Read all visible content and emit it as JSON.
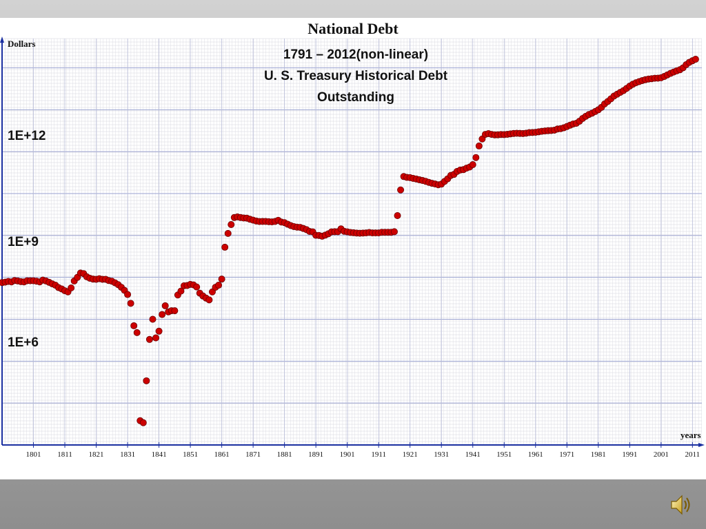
{
  "chart_data": {
    "type": "scatter",
    "title": "National Debt",
    "subtitle_lines": [
      "1791 – 2012(non-linear)",
      "U. S. Treasury Historical Debt",
      "Outstanding"
    ],
    "ylabel": "Dollars",
    "xlabel": "years",
    "y_scale": "log",
    "y_tick_labels": [
      "1E+12",
      "1E+9",
      "1E+6"
    ],
    "y_tick_values": [
      1000000000000,
      1000000000,
      1000000
    ],
    "x_tick_labels": [
      "1801",
      "1811",
      "1821",
      "1831",
      "1841",
      "1851",
      "1861",
      "1871",
      "1881",
      "1891",
      "1901",
      "1911",
      "1921",
      "1931",
      "1941",
      "1951",
      "1961",
      "1971",
      "1981",
      "1991",
      "2001",
      "2011"
    ],
    "xlim": [
      1791,
      2014
    ],
    "ylim": [
      10000,
      50000000000000
    ],
    "grid": true,
    "marker_color": "#cc0000",
    "series": [
      {
        "points": [
          [
            1791,
            75000000
          ],
          [
            1792,
            77000000
          ],
          [
            1793,
            80000000
          ],
          [
            1794,
            78000000
          ],
          [
            1795,
            84000000
          ],
          [
            1796,
            82000000
          ],
          [
            1797,
            79000000
          ],
          [
            1798,
            78000000
          ],
          [
            1799,
            83000000
          ],
          [
            1800,
            83000000
          ],
          [
            1801,
            83000000
          ],
          [
            1802,
            81000000
          ],
          [
            1803,
            78000000
          ],
          [
            1804,
            86000000
          ],
          [
            1805,
            82000000
          ],
          [
            1806,
            76000000
          ],
          [
            1807,
            70000000
          ],
          [
            1808,
            65000000
          ],
          [
            1809,
            57000000
          ],
          [
            1810,
            53000000
          ],
          [
            1811,
            48000000
          ],
          [
            1812,
            45000000
          ],
          [
            1813,
            56000000
          ],
          [
            1814,
            82000000
          ],
          [
            1815,
            100000000
          ],
          [
            1816,
            127000000
          ],
          [
            1817,
            123000000
          ],
          [
            1818,
            103000000
          ],
          [
            1819,
            95000000
          ],
          [
            1820,
            91000000
          ],
          [
            1821,
            90000000
          ],
          [
            1822,
            93000000
          ],
          [
            1823,
            90000000
          ],
          [
            1824,
            90000000
          ],
          [
            1825,
            84000000
          ],
          [
            1826,
            81000000
          ],
          [
            1827,
            74000000
          ],
          [
            1828,
            67000000
          ],
          [
            1829,
            58000000
          ],
          [
            1830,
            49000000
          ],
          [
            1831,
            39000000
          ],
          [
            1832,
            24000000
          ],
          [
            1833,
            7000000
          ],
          [
            1834,
            4800000
          ],
          [
            1835,
            38000
          ],
          [
            1836,
            34000
          ],
          [
            1837,
            340000
          ],
          [
            1838,
            3300000
          ],
          [
            1839,
            10000000
          ],
          [
            1840,
            3600000
          ],
          [
            1841,
            5200000
          ],
          [
            1842,
            13000000
          ],
          [
            1843,
            21000000
          ],
          [
            1844,
            15000000
          ],
          [
            1845,
            16000000
          ],
          [
            1846,
            16000000
          ],
          [
            1847,
            38000000
          ],
          [
            1848,
            47000000
          ],
          [
            1849,
            63000000
          ],
          [
            1850,
            64000000
          ],
          [
            1851,
            68000000
          ],
          [
            1852,
            66000000
          ],
          [
            1853,
            59000000
          ],
          [
            1854,
            42000000
          ],
          [
            1855,
            36000000
          ],
          [
            1856,
            32000000
          ],
          [
            1857,
            29000000
          ],
          [
            1858,
            45000000
          ],
          [
            1859,
            58000000
          ],
          [
            1860,
            65000000
          ],
          [
            1861,
            91000000
          ],
          [
            1862,
            524000000
          ],
          [
            1863,
            1120000000
          ],
          [
            1864,
            1820000000
          ],
          [
            1865,
            2680000000
          ],
          [
            1866,
            2770000000
          ],
          [
            1867,
            2680000000
          ],
          [
            1868,
            2610000000
          ],
          [
            1869,
            2590000000
          ],
          [
            1870,
            2440000000
          ],
          [
            1871,
            2320000000
          ],
          [
            1872,
            2210000000
          ],
          [
            1873,
            2150000000
          ],
          [
            1874,
            2160000000
          ],
          [
            1875,
            2160000000
          ],
          [
            1876,
            2130000000
          ],
          [
            1877,
            2110000000
          ],
          [
            1878,
            2160000000
          ],
          [
            1879,
            2300000000
          ],
          [
            1880,
            2090000000
          ],
          [
            1881,
            2020000000
          ],
          [
            1882,
            1860000000
          ],
          [
            1883,
            1720000000
          ],
          [
            1884,
            1630000000
          ],
          [
            1885,
            1580000000
          ],
          [
            1886,
            1560000000
          ],
          [
            1887,
            1470000000
          ],
          [
            1888,
            1380000000
          ],
          [
            1889,
            1250000000
          ],
          [
            1890,
            1220000000
          ],
          [
            1891,
            1010000000
          ],
          [
            1892,
            1000000000
          ],
          [
            1893,
            960000000
          ],
          [
            1894,
            1020000000
          ],
          [
            1895,
            1100000000
          ],
          [
            1896,
            1220000000
          ],
          [
            1897,
            1230000000
          ],
          [
            1898,
            1230000000
          ],
          [
            1899,
            1440000000
          ],
          [
            1900,
            1260000000
          ],
          [
            1901,
            1220000000
          ],
          [
            1902,
            1180000000
          ],
          [
            1903,
            1160000000
          ],
          [
            1904,
            1140000000
          ],
          [
            1905,
            1130000000
          ],
          [
            1906,
            1140000000
          ],
          [
            1907,
            1150000000
          ],
          [
            1908,
            1180000000
          ],
          [
            1909,
            1150000000
          ],
          [
            1910,
            1150000000
          ],
          [
            1911,
            1150000000
          ],
          [
            1912,
            1190000000
          ],
          [
            1913,
            1190000000
          ],
          [
            1914,
            1190000000
          ],
          [
            1915,
            1190000000
          ],
          [
            1916,
            1230000000
          ],
          [
            1917,
            2980000000
          ],
          [
            1918,
            12200000000
          ],
          [
            1919,
            25500000000
          ],
          [
            1920,
            24300000000
          ],
          [
            1921,
            24000000000
          ],
          [
            1922,
            23000000000
          ],
          [
            1923,
            22300000000
          ],
          [
            1924,
            21300000000
          ],
          [
            1925,
            20500000000
          ],
          [
            1926,
            19600000000
          ],
          [
            1927,
            18500000000
          ],
          [
            1928,
            17600000000
          ],
          [
            1929,
            16900000000
          ],
          [
            1930,
            16200000000
          ],
          [
            1931,
            16800000000
          ],
          [
            1932,
            19500000000
          ],
          [
            1933,
            22500000000
          ],
          [
            1934,
            27100000000
          ],
          [
            1935,
            28700000000
          ],
          [
            1936,
            33800000000
          ],
          [
            1937,
            36400000000
          ],
          [
            1938,
            37200000000
          ],
          [
            1939,
            40400000000
          ],
          [
            1940,
            43000000000
          ],
          [
            1941,
            49000000000
          ],
          [
            1942,
            72400000000
          ],
          [
            1943,
            136700000000
          ],
          [
            1944,
            201000000000
          ],
          [
            1945,
            258700000000
          ],
          [
            1946,
            269400000000
          ],
          [
            1947,
            258300000000
          ],
          [
            1948,
            252300000000
          ],
          [
            1949,
            252800000000
          ],
          [
            1950,
            257400000000
          ],
          [
            1951,
            255200000000
          ],
          [
            1952,
            259100000000
          ],
          [
            1953,
            266100000000
          ],
          [
            1954,
            271300000000
          ],
          [
            1955,
            274400000000
          ],
          [
            1956,
            272800000000
          ],
          [
            1957,
            270500000000
          ],
          [
            1958,
            276300000000
          ],
          [
            1959,
            284700000000
          ],
          [
            1960,
            286300000000
          ],
          [
            1961,
            289000000000
          ],
          [
            1962,
            298200000000
          ],
          [
            1963,
            305900000000
          ],
          [
            1964,
            311700000000
          ],
          [
            1965,
            317300000000
          ],
          [
            1966,
            319900000000
          ],
          [
            1967,
            326200000000
          ],
          [
            1968,
            347600000000
          ],
          [
            1969,
            353700000000
          ],
          [
            1970,
            370900000000
          ],
          [
            1971,
            398100000000
          ],
          [
            1972,
            427300000000
          ],
          [
            1973,
            458100000000
          ],
          [
            1974,
            475100000000
          ],
          [
            1975,
            533200000000
          ],
          [
            1976,
            620400000000
          ],
          [
            1977,
            698800000000
          ],
          [
            1978,
            771500000000
          ],
          [
            1979,
            826500000000
          ],
          [
            1980,
            907700000000
          ],
          [
            1981,
            997900000000
          ],
          [
            1982,
            1142000000000
          ],
          [
            1983,
            1377200000000
          ],
          [
            1984,
            1572300000000
          ],
          [
            1985,
            1823100000000
          ],
          [
            1986,
            2125300000000
          ],
          [
            1987,
            2350300000000
          ],
          [
            1988,
            2602300000000
          ],
          [
            1989,
            2857400000000
          ],
          [
            1990,
            3233300000000
          ],
          [
            1991,
            3665300000000
          ],
          [
            1992,
            4064600000000
          ],
          [
            1993,
            4411500000000
          ],
          [
            1994,
            4692700000000
          ],
          [
            1995,
            4974000000000
          ],
          [
            1996,
            5224800000000
          ],
          [
            1997,
            5413100000000
          ],
          [
            1998,
            5526200000000
          ],
          [
            1999,
            5656300000000
          ],
          [
            2000,
            5674200000000
          ],
          [
            2001,
            5807500000000
          ],
          [
            2002,
            6228200000000
          ],
          [
            2003,
            6783200000000
          ],
          [
            2004,
            7379100000000
          ],
          [
            2005,
            7932700000000
          ],
          [
            2006,
            8507000000000
          ],
          [
            2007,
            9007600000000
          ],
          [
            2008,
            10024700000000
          ],
          [
            2009,
            11909800000000
          ],
          [
            2010,
            13561600000000
          ],
          [
            2011,
            14790300000000
          ],
          [
            2012,
            16066200000000
          ]
        ]
      }
    ]
  },
  "audio": {
    "icon": "speaker-icon"
  }
}
